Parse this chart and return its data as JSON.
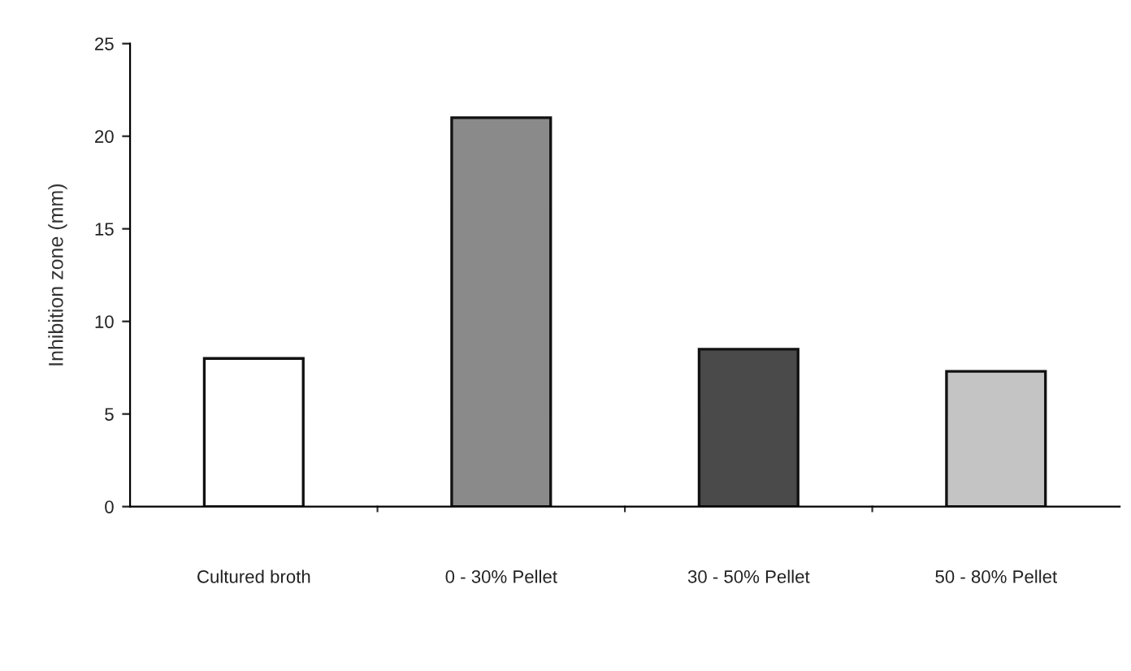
{
  "chart_data": {
    "type": "bar",
    "ylabel": "Inhibition zone (mm)",
    "categories": [
      "Cultured broth",
      "0 - 30% Pellet",
      "30 - 50% Pellet",
      "50 - 80% Pellet"
    ],
    "values": [
      8.0,
      21.0,
      8.5,
      7.3
    ],
    "colors": [
      "#ffffff",
      "#8a8a8a",
      "#4a4a4a",
      "#c4c4c4"
    ],
    "ylim": [
      0,
      25
    ],
    "yticks": [
      0,
      5,
      10,
      15,
      20,
      25
    ],
    "grid": false
  }
}
